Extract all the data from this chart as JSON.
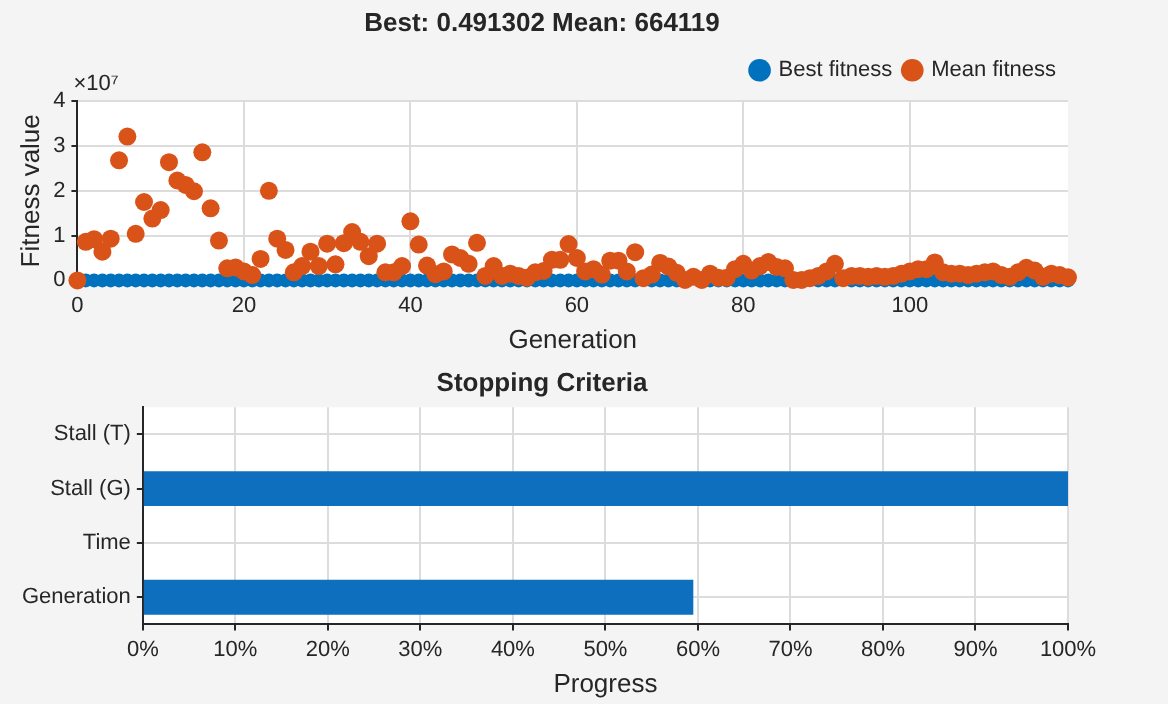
{
  "chart_data": [
    {
      "type": "scatter",
      "title": "Best: 0.491302 Mean: 664119",
      "xlabel": "Generation",
      "ylabel": "Fitness value",
      "annotations": [
        "×10⁷"
      ],
      "x": [
        0,
        1,
        2,
        3,
        4,
        5,
        6,
        7,
        8,
        9,
        10,
        11,
        12,
        13,
        14,
        15,
        16,
        17,
        18,
        19,
        20,
        21,
        22,
        23,
        24,
        25,
        26,
        27,
        28,
        29,
        30,
        31,
        32,
        33,
        34,
        35,
        36,
        37,
        38,
        39,
        40,
        41,
        42,
        43,
        44,
        45,
        46,
        47,
        48,
        49,
        50,
        51,
        52,
        53,
        54,
        55,
        56,
        57,
        58,
        59,
        60,
        61,
        62,
        63,
        64,
        65,
        66,
        67,
        68,
        69,
        70,
        71,
        72,
        73,
        74,
        75,
        76,
        77,
        78,
        79,
        80,
        81,
        82,
        83,
        84,
        85,
        86,
        87,
        88,
        89,
        90,
        91,
        92,
        93,
        94,
        95,
        96,
        97,
        98,
        99,
        100,
        101,
        102,
        103,
        104,
        105,
        106,
        107,
        108,
        109,
        110,
        111,
        112,
        113,
        114,
        115,
        116,
        117,
        118,
        119
      ],
      "series": [
        {
          "name": "Best fitness",
          "color": "#0072bd",
          "values": [
            null,
            0,
            0,
            0,
            0,
            0,
            0,
            0,
            0,
            0,
            0,
            0,
            0,
            0,
            0,
            0,
            0,
            0,
            0,
            0,
            0,
            0,
            0,
            0,
            0,
            0,
            0,
            0,
            0,
            0,
            0,
            0,
            0,
            0,
            0,
            0,
            0,
            0,
            0,
            0,
            0,
            0,
            0,
            0,
            0,
            0,
            0,
            0,
            0,
            0,
            0,
            0,
            0,
            0,
            0,
            0,
            0,
            0,
            0,
            0,
            0,
            0,
            0,
            0,
            0,
            0,
            0,
            0,
            null,
            0,
            0,
            0,
            0,
            null,
            null,
            null,
            0,
            0,
            0,
            0,
            0,
            0,
            0,
            0,
            0,
            0,
            null,
            null,
            null,
            0,
            0,
            0,
            null,
            0,
            0,
            0,
            0,
            0,
            0,
            0,
            0,
            0,
            0,
            0,
            0,
            0,
            0,
            0,
            0,
            0,
            0,
            0,
            0,
            0,
            0,
            0,
            0,
            0,
            0,
            0
          ]
        },
        {
          "name": "Mean fitness",
          "color": "#d95319",
          "values": [
            0,
            0.86,
            0.92,
            0.64,
            0.93,
            2.68,
            3.21,
            1.04,
            1.75,
            1.38,
            1.57,
            2.64,
            2.23,
            2.13,
            1.99,
            2.86,
            1.61,
            0.89,
            0.27,
            0.29,
            0.2,
            0.12,
            0.48,
            2.0,
            0.93,
            0.68,
            0.18,
            0.32,
            0.64,
            0.32,
            0.82,
            0.36,
            0.83,
            1.08,
            0.86,
            0.54,
            0.82,
            0.18,
            0.18,
            0.32,
            1.32,
            0.8,
            0.33,
            0.14,
            0.2,
            0.58,
            0.5,
            0.37,
            0.84,
            0.1,
            0.32,
            0.1,
            0.15,
            0.1,
            0.06,
            0.18,
            0.21,
            0.46,
            0.46,
            0.81,
            0.5,
            0.2,
            0.25,
            0.13,
            0.44,
            0.44,
            0.2,
            0.63,
            0.05,
            0.13,
            0.39,
            0.31,
            0.17,
            0.01,
            0.08,
            0.01,
            0.15,
            0.06,
            0.06,
            0.25,
            0.37,
            0.22,
            0.32,
            0.41,
            0.3,
            0.27,
            0.01,
            0.01,
            0.05,
            0.1,
            0.2,
            0.37,
            0.05,
            0.1,
            0.1,
            0.08,
            0.1,
            0.08,
            0.1,
            0.15,
            0.2,
            0.25,
            0.25,
            0.4,
            0.18,
            0.15,
            0.15,
            0.12,
            0.15,
            0.18,
            0.2,
            0.12,
            0.08,
            0.18,
            0.28,
            0.22,
            0.08,
            0.15,
            0.12,
            0.07
          ]
        }
      ],
      "xlim": [
        0,
        119
      ],
      "xticks": [
        0,
        20,
        40,
        60,
        80,
        100
      ],
      "ylim": [
        0,
        4
      ],
      "yticks": [
        0,
        1,
        2,
        3,
        4
      ],
      "grid": true,
      "legend": "top right",
      "marker": "circle"
    },
    {
      "type": "bar",
      "orientation": "horizontal",
      "title": "Stopping Criteria",
      "xlabel": "Progress",
      "categories": [
        "Stall (T)",
        "Stall (G)",
        "Time",
        "Generation"
      ],
      "values": [
        0,
        100,
        0,
        59.5
      ],
      "color": "#0f6fbf",
      "xlim": [
        0,
        100
      ],
      "xticks": [
        {
          "value": 0,
          "label": "0%"
        },
        {
          "value": 10,
          "label": "10%"
        },
        {
          "value": 20,
          "label": "20%"
        },
        {
          "value": 30,
          "label": "30%"
        },
        {
          "value": 40,
          "label": "40%"
        },
        {
          "value": 50,
          "label": "50%"
        },
        {
          "value": 60,
          "label": "60%"
        },
        {
          "value": 70,
          "label": "70%"
        },
        {
          "value": 80,
          "label": "80%"
        },
        {
          "value": 90,
          "label": "90%"
        },
        {
          "value": 100,
          "label": "100%"
        }
      ],
      "grid": true
    }
  ]
}
